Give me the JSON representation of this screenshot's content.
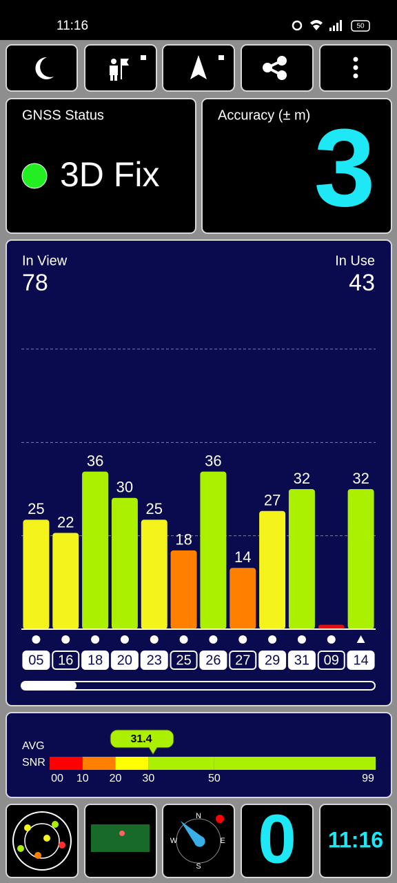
{
  "status_bar": {
    "time": "11:16",
    "battery": "50"
  },
  "gnss": {
    "title": "GNSS Status",
    "status": "3D Fix"
  },
  "accuracy": {
    "title": "Accuracy (± m)",
    "value": "3"
  },
  "satellites": {
    "in_view_label": "In View",
    "in_view": "78",
    "in_use_label": "In Use",
    "in_use": "43"
  },
  "chart_data": {
    "type": "bar",
    "categories": [
      "05",
      "16",
      "18",
      "20",
      "23",
      "25",
      "26",
      "27",
      "29",
      "31",
      "09",
      "14"
    ],
    "values": [
      25,
      22,
      36,
      30,
      25,
      18,
      36,
      14,
      27,
      32,
      1,
      32
    ],
    "value_labels": [
      "25",
      "22",
      "36",
      "30",
      "25",
      "18",
      "36",
      "14",
      "27",
      "32",
      null,
      "32"
    ],
    "colors": [
      "#f4f41c",
      "#f4f41c",
      "#aaf000",
      "#aaf000",
      "#f4f41c",
      "#ff8000",
      "#aaf000",
      "#ff8000",
      "#f4f41c",
      "#aaf000",
      "#e01010",
      "#aaf000"
    ],
    "used": [
      true,
      false,
      true,
      true,
      true,
      false,
      true,
      false,
      true,
      true,
      false,
      true
    ],
    "symbols": [
      "circle",
      "circle",
      "circle",
      "circle",
      "circle",
      "circle",
      "circle",
      "circle",
      "circle",
      "circle",
      "circle",
      "triangle"
    ],
    "ylim": [
      0,
      64
    ],
    "grid": true
  },
  "snr": {
    "avg_label": "AVG",
    "snr_label": "SNR",
    "avg": 31.4,
    "xlim": [
      0,
      99
    ],
    "xticks": [
      {
        "value": 0,
        "label": "00"
      },
      10,
      20,
      30,
      50,
      99
    ],
    "segment_colors": [
      "#ff0000",
      "#ff8000",
      "#ffff00",
      "#aaf000",
      "#aaf000",
      "#00e000"
    ]
  },
  "bottom": {
    "compass": {
      "n": "N",
      "e": "E",
      "s": "S",
      "w": "W"
    },
    "count": "0",
    "time": "11:16"
  }
}
